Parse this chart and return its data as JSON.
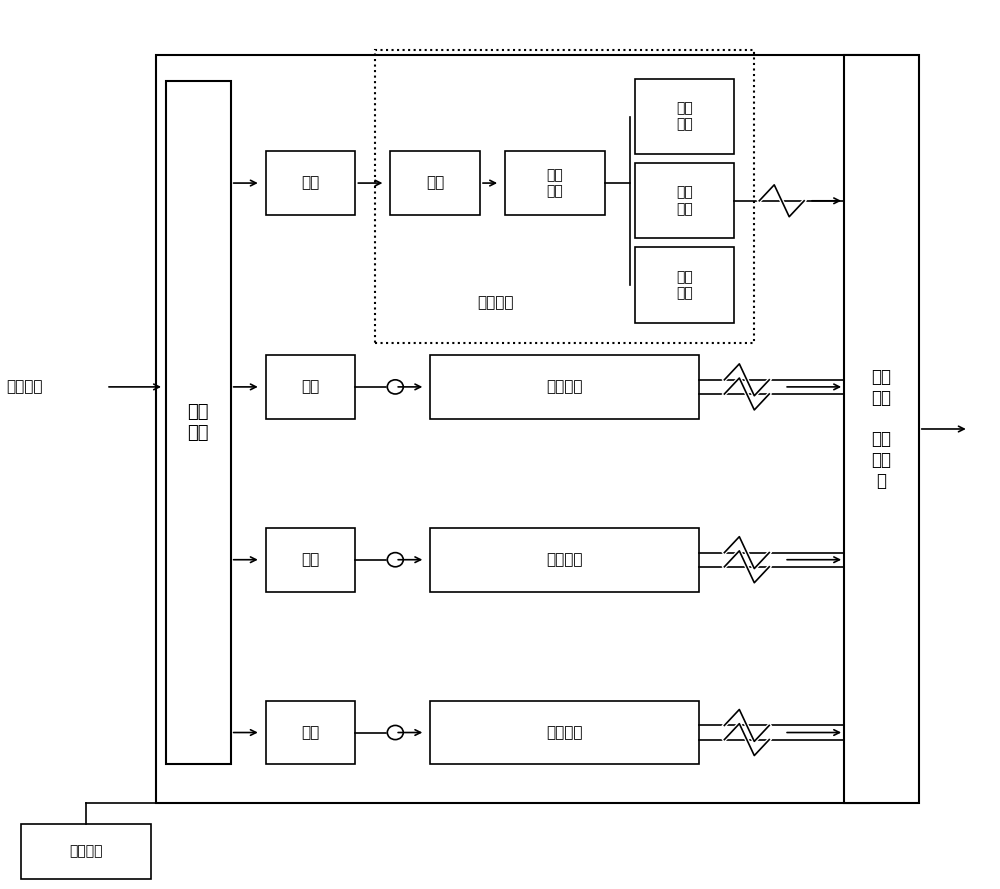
{
  "bg_color": "#ffffff",
  "line_color": "#000000",
  "box_color": "#ffffff",
  "box_edge": "#000000",
  "fig_width": 10.0,
  "fig_height": 8.89,
  "zhongpin": "中频信号",
  "caiyang": "采样\n分配",
  "bianliang": "变量更新",
  "huanchong": "缓冲",
  "jiancheng": "鉴相",
  "pipei": "匹配\n滤波",
  "shijian": "时钟\n同步",
  "shuju": "数据\n同步",
  "xiangwei": "相位\n同步",
  "jidai_label": "基带处理",
  "jidai2": "基带处理",
  "jidai3": "基带处理",
  "jidai4": "基带处理",
  "chafenjie": "差分\n解码\n\n及串\n并转\n换"
}
